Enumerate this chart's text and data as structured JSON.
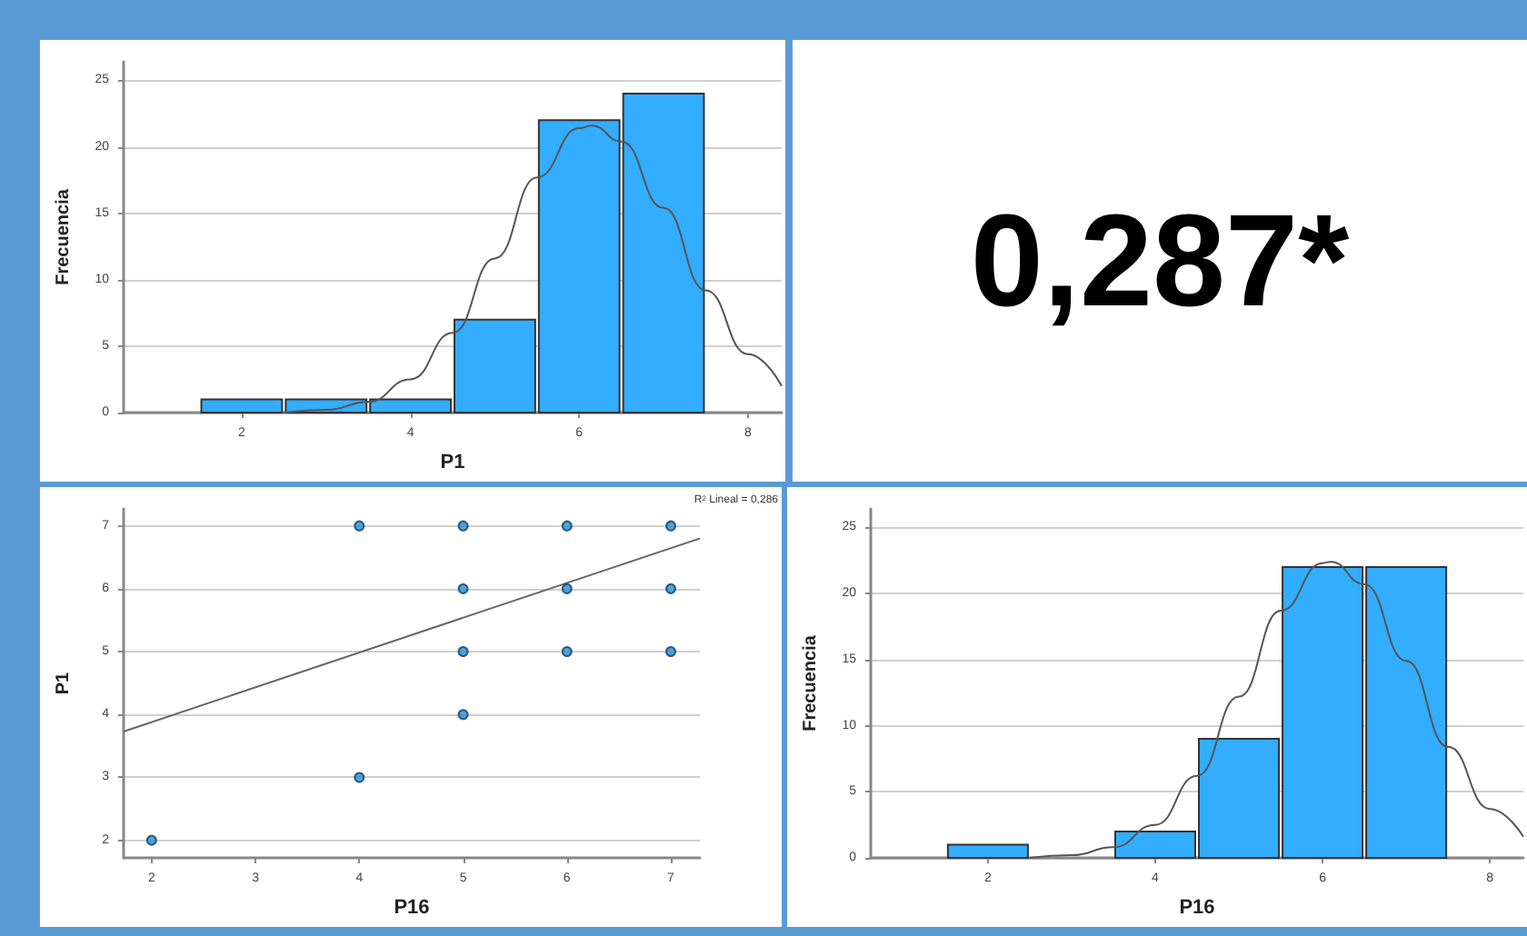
{
  "chart_data": [
    {
      "type": "histogram",
      "xlabel": "P1",
      "ylabel": "Frecuencia",
      "bins": [
        1.5,
        2.5,
        3.5,
        4.5,
        5.5,
        6.5,
        7.5
      ],
      "xlim": [
        0.6,
        8.4
      ],
      "xticks": [
        2,
        4,
        6,
        8
      ],
      "ylim": [
        0,
        26.4
      ],
      "yticks": [
        0,
        5,
        10,
        15,
        20,
        25
      ],
      "grid": "y",
      "series": [
        {
          "type": "histogram",
          "color": "#33adff",
          "values": [
            1,
            1,
            1,
            7,
            22,
            24
          ]
        },
        {
          "type": "line",
          "color": "#555555",
          "x": [
            2.5,
            3,
            3.5,
            4,
            4.5,
            5,
            5.5,
            6,
            6.15,
            6.5,
            7,
            7.5,
            8,
            8.4
          ],
          "values": [
            0,
            0.2,
            0.8,
            2.5,
            6,
            11.6,
            17.7,
            21.4,
            21.6,
            20.4,
            15.4,
            9.2,
            4.4,
            2
          ]
        }
      ]
    },
    {
      "type": "other",
      "title": "0,287*"
    },
    {
      "type": "scatter",
      "xlabel": "P16",
      "ylabel": "P1",
      "xlim": [
        1.73,
        7.28
      ],
      "xticks": [
        2,
        3,
        4,
        5,
        6,
        7
      ],
      "ylim": [
        1.72,
        7.27
      ],
      "yticks": [
        2,
        3,
        4,
        5,
        6,
        7
      ],
      "grid": "y",
      "annotations": [
        "R$^{2}$ Lineal = 0,286"
      ],
      "series": [
        {
          "type": "scatter",
          "marker": "circle",
          "color": "#1e90d8",
          "x": [
            2,
            4,
            4,
            5,
            5,
            5,
            5,
            6,
            6,
            6,
            7,
            7,
            7
          ],
          "values": [
            2,
            3,
            7,
            4,
            5,
            6,
            7,
            5,
            6,
            7,
            5,
            6,
            7
          ]
        },
        {
          "type": "line",
          "marker": "none",
          "color": "#666666",
          "x": [
            1.73,
            7.28
          ],
          "values": [
            3.73,
            6.8
          ]
        }
      ]
    },
    {
      "type": "histogram",
      "xlabel": "P16",
      "ylabel": "Frecuencia",
      "bins": [
        1.5,
        2.5,
        3.5,
        4.5,
        5.5,
        6.5,
        7.5
      ],
      "xlim": [
        0.6,
        8.4
      ],
      "xticks": [
        2,
        4,
        6,
        8
      ],
      "ylim": [
        0,
        26.4
      ],
      "yticks": [
        0,
        5,
        10,
        15,
        20,
        25
      ],
      "grid": "y",
      "series": [
        {
          "type": "histogram",
          "color": "#33adff",
          "values": [
            1,
            0,
            2,
            9,
            22,
            22
          ]
        },
        {
          "type": "line",
          "color": "#555555",
          "x": [
            2.5,
            3,
            3.5,
            4,
            4.5,
            5,
            5.5,
            6,
            6.1,
            6.5,
            7,
            7.5,
            8,
            8.4
          ],
          "values": [
            0,
            0.2,
            0.8,
            2.5,
            6.2,
            12.2,
            18.7,
            22.3,
            22.4,
            20.7,
            14.9,
            8.4,
            3.7,
            1.6
          ]
        }
      ]
    }
  ]
}
